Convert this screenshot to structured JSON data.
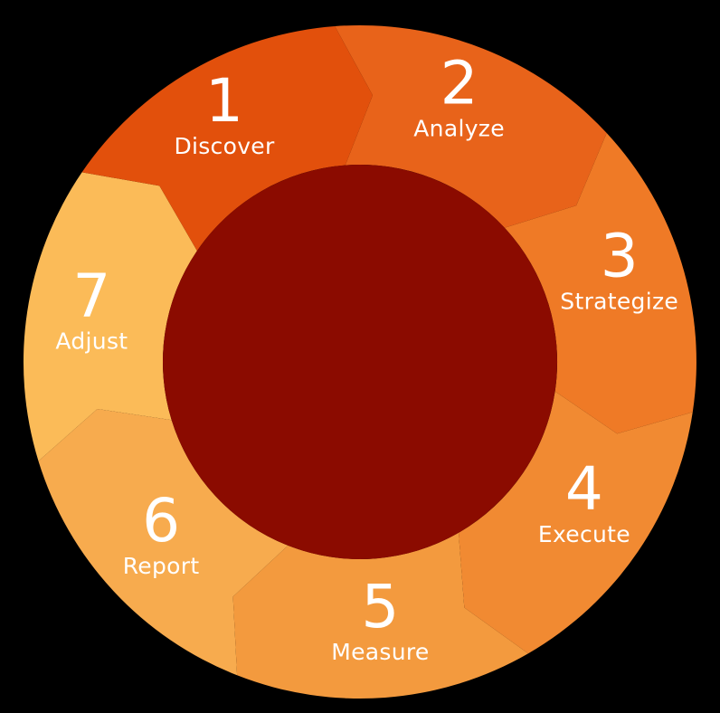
{
  "background_color": "#000000",
  "center_color": "#8b0b00",
  "steps": [
    {
      "number": "1",
      "label": "Discover",
      "color": "#e2500c"
    },
    {
      "number": "2",
      "label": "Analyze",
      "color": "#e8631a"
    },
    {
      "number": "3",
      "label": "Strategize",
      "color": "#ef7a26"
    },
    {
      "number": "4",
      "label": "Execute",
      "color": "#f18a32"
    },
    {
      "number": "5",
      "label": "Measure",
      "color": "#f39a3e"
    },
    {
      "number": "6",
      "label": "Report",
      "color": "#f7ab4e"
    },
    {
      "number": "7",
      "label": "Adjust",
      "color": "#fbbb58"
    }
  ]
}
